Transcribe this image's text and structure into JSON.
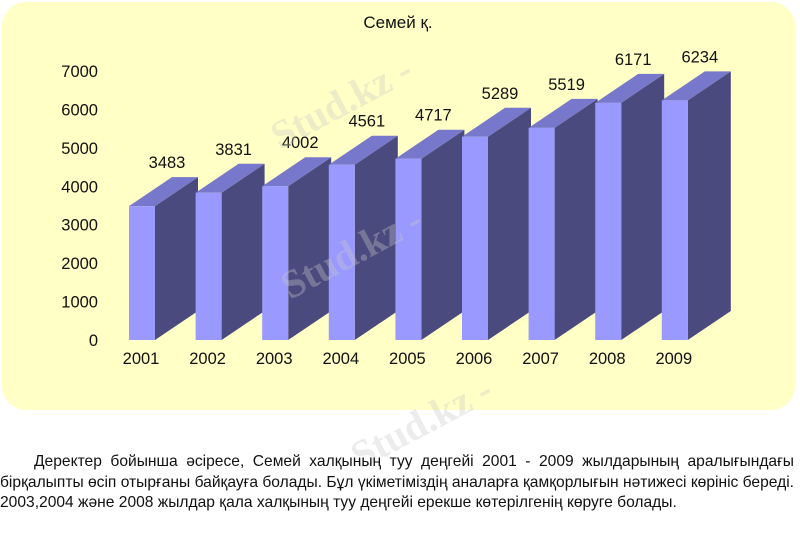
{
  "chart_data": {
    "type": "bar",
    "title": "Семей қ.",
    "categories": [
      "2001",
      "2002",
      "2003",
      "2004",
      "2005",
      "2006",
      "2007",
      "2008",
      "2009"
    ],
    "values": [
      3483,
      3831,
      4002,
      4561,
      4717,
      5289,
      5519,
      6171,
      6234
    ],
    "ylim": [
      0,
      7000
    ],
    "yticks": [
      "0",
      "1000",
      "2000",
      "3000",
      "4000",
      "5000",
      "6000",
      "7000"
    ],
    "grid": false,
    "legend": "none",
    "colors": {
      "front": "#9999ff",
      "side": "#4a4a7e",
      "top": "#7777cc",
      "panel": "#ffffc6"
    }
  },
  "watermark": "Stud.kz -",
  "caption": "Деректер бойынша әсіресе, Семей халқының туу деңгейі 2001 - 2009 жылдарының аралығындағы бірқалыпты өсіп отырғаны байқауға болады. Бұл үкіметіміздің аналарға қамқорлығын нәтижесі көрініс береді. 2003,2004 және 2008 жылдар қала халқының туу деңгейі ерекше көтерілгенің көруге болады."
}
